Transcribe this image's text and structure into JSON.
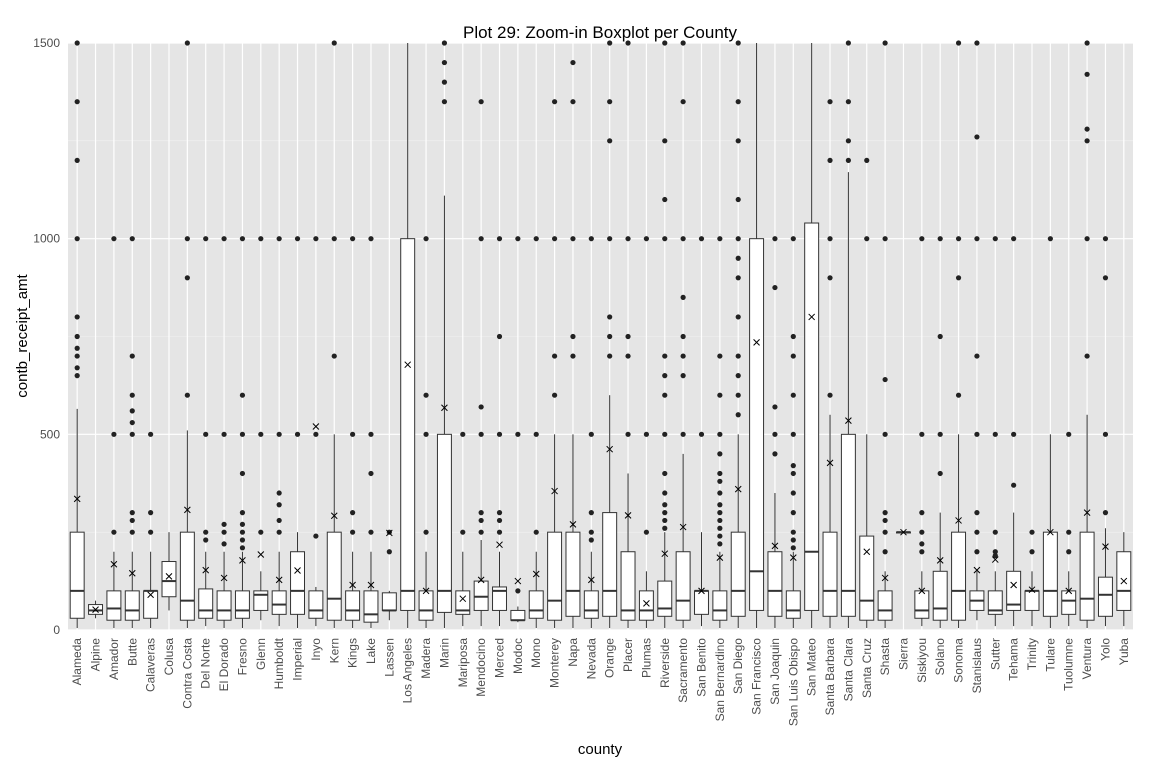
{
  "chart_data": {
    "type": "boxplot",
    "title": "Plot 29: Zoom-in Boxplot per County",
    "xlabel": "county",
    "ylabel": "contb_receipt_amt",
    "ylim": [
      0,
      1500
    ],
    "yticks": [
      0,
      500,
      1000,
      1500
    ],
    "grid": true,
    "mean_marker": "x",
    "colors": {
      "panel": "#e5e5e5",
      "grid": "#ffffff",
      "box_fill": "#ffffff",
      "box_stroke": "#333333",
      "point": "#222222"
    },
    "categories": [
      "Alameda",
      "Alpine",
      "Amador",
      "Butte",
      "Calaveras",
      "Colusa",
      "Contra Costa",
      "Del Norte",
      "El Dorado",
      "Fresno",
      "Glenn",
      "Humboldt",
      "Imperial",
      "Inyo",
      "Kern",
      "Kings",
      "Lake",
      "Lassen",
      "Los Angeles",
      "Madera",
      "Marin",
      "Mariposa",
      "Mendocino",
      "Merced",
      "Modoc",
      "Mono",
      "Monterey",
      "Napa",
      "Nevada",
      "Orange",
      "Placer",
      "Plumas",
      "Riverside",
      "Sacramento",
      "San Benito",
      "San Bernardino",
      "San Diego",
      "San Francisco",
      "San Joaquin",
      "San Luis Obispo",
      "San Mateo",
      "Santa Barbara",
      "Santa Clara",
      "Santa Cruz",
      "Shasta",
      "Sierra",
      "Siskiyou",
      "Solano",
      "Sonoma",
      "Stanislaus",
      "Sutter",
      "Tehama",
      "Trinity",
      "Tulare",
      "Tuolumne",
      "Ventura",
      "Yolo",
      "Yuba"
    ],
    "boxes": [
      {
        "q1": 30,
        "median": 100,
        "q3": 250,
        "wmin": 5,
        "wmax": 565,
        "mean": 335,
        "outliers": [
          650,
          670,
          700,
          720,
          750,
          800,
          1000,
          1200,
          1350,
          1500
        ]
      },
      {
        "q1": 40,
        "median": 50,
        "q3": 65,
        "wmin": 30,
        "wmax": 75,
        "mean": 52,
        "outliers": []
      },
      {
        "q1": 25,
        "median": 55,
        "q3": 100,
        "wmin": 5,
        "wmax": 200,
        "mean": 168,
        "outliers": [
          250,
          500,
          1000
        ]
      },
      {
        "q1": 25,
        "median": 50,
        "q3": 100,
        "wmin": 5,
        "wmax": 200,
        "mean": 145,
        "outliers": [
          250,
          280,
          300,
          500,
          530,
          560,
          600,
          700,
          1000
        ]
      },
      {
        "q1": 30,
        "median": 100,
        "q3": 100,
        "wmin": 5,
        "wmax": 200,
        "mean": 90,
        "outliers": [
          250,
          300,
          500
        ]
      },
      {
        "q1": 85,
        "median": 125,
        "q3": 175,
        "wmin": 50,
        "wmax": 250,
        "mean": 137,
        "outliers": []
      },
      {
        "q1": 25,
        "median": 75,
        "q3": 250,
        "wmin": 5,
        "wmax": 510,
        "mean": 307,
        "outliers": [
          600,
          900,
          1000,
          1500
        ]
      },
      {
        "q1": 30,
        "median": 50,
        "q3": 105,
        "wmin": 10,
        "wmax": 200,
        "mean": 153,
        "outliers": [
          230,
          250,
          500,
          1000
        ]
      },
      {
        "q1": 25,
        "median": 50,
        "q3": 100,
        "wmin": 5,
        "wmax": 200,
        "mean": 133,
        "outliers": [
          220,
          250,
          270,
          500,
          1000
        ]
      },
      {
        "q1": 30,
        "median": 50,
        "q3": 100,
        "wmin": 5,
        "wmax": 200,
        "mean": 178,
        "outliers": [
          210,
          230,
          250,
          270,
          300,
          400,
          500,
          600,
          1000
        ]
      },
      {
        "q1": 50,
        "median": 90,
        "q3": 100,
        "wmin": 25,
        "wmax": 150,
        "mean": 193,
        "outliers": [
          250,
          500,
          1000
        ]
      },
      {
        "q1": 40,
        "median": 65,
        "q3": 100,
        "wmin": 10,
        "wmax": 200,
        "mean": 128,
        "outliers": [
          250,
          280,
          320,
          350,
          500,
          1000
        ]
      },
      {
        "q1": 40,
        "median": 100,
        "q3": 200,
        "wmin": 5,
        "wmax": 250,
        "mean": 152,
        "outliers": [
          500,
          1000
        ]
      },
      {
        "q1": 30,
        "median": 50,
        "q3": 100,
        "wmin": 10,
        "wmax": 110,
        "mean": 520,
        "outliers": [
          240,
          500,
          1000
        ]
      },
      {
        "q1": 25,
        "median": 80,
        "q3": 250,
        "wmin": 5,
        "wmax": 500,
        "mean": 292,
        "outliers": [
          700,
          1000,
          1500
        ]
      },
      {
        "q1": 25,
        "median": 50,
        "q3": 100,
        "wmin": 5,
        "wmax": 200,
        "mean": 115,
        "outliers": [
          250,
          300,
          500,
          1000
        ]
      },
      {
        "q1": 20,
        "median": 40,
        "q3": 100,
        "wmin": 5,
        "wmax": 200,
        "mean": 115,
        "outliers": [
          250,
          400,
          500,
          1000
        ]
      },
      {
        "q1": 50,
        "median": 50,
        "q3": 95,
        "wmin": 25,
        "wmax": 100,
        "mean": 248,
        "outliers": [
          200,
          250
        ]
      },
      {
        "q1": 50,
        "median": 100,
        "q3": 1000,
        "wmin": 5,
        "wmax": 1500,
        "mean": 678,
        "outliers": []
      },
      {
        "q1": 25,
        "median": 50,
        "q3": 100,
        "wmin": 5,
        "wmax": 200,
        "mean": 100,
        "outliers": [
          250,
          500,
          600,
          1000
        ]
      },
      {
        "q1": 45,
        "median": 100,
        "q3": 500,
        "wmin": 5,
        "wmax": 1110,
        "mean": 568,
        "outliers": [
          1350,
          1400,
          1450,
          1500
        ]
      },
      {
        "q1": 40,
        "median": 50,
        "q3": 100,
        "wmin": 10,
        "wmax": 200,
        "mean": 80,
        "outliers": [
          250,
          500
        ]
      },
      {
        "q1": 50,
        "median": 85,
        "q3": 125,
        "wmin": 10,
        "wmax": 230,
        "mean": 128,
        "outliers": [
          250,
          280,
          300,
          500,
          570,
          1000,
          1350
        ]
      },
      {
        "q1": 50,
        "median": 100,
        "q3": 110,
        "wmin": 10,
        "wmax": 200,
        "mean": 218,
        "outliers": [
          250,
          280,
          300,
          500,
          750,
          1000
        ]
      },
      {
        "q1": 25,
        "median": 25,
        "q3": 50,
        "wmin": 20,
        "wmax": 60,
        "mean": 125,
        "outliers": [
          100,
          500,
          1000
        ]
      },
      {
        "q1": 30,
        "median": 50,
        "q3": 100,
        "wmin": 5,
        "wmax": 200,
        "mean": 143,
        "outliers": [
          250,
          500,
          1000
        ]
      },
      {
        "q1": 25,
        "median": 75,
        "q3": 250,
        "wmin": 5,
        "wmax": 500,
        "mean": 355,
        "outliers": [
          600,
          700,
          1000,
          1350
        ]
      },
      {
        "q1": 35,
        "median": 100,
        "q3": 250,
        "wmin": 5,
        "wmax": 500,
        "mean": 270,
        "outliers": [
          700,
          750,
          1000,
          1350,
          1450
        ]
      },
      {
        "q1": 30,
        "median": 50,
        "q3": 100,
        "wmin": 5,
        "wmax": 200,
        "mean": 128,
        "outliers": [
          230,
          250,
          300,
          500,
          1000
        ]
      },
      {
        "q1": 35,
        "median": 100,
        "q3": 300,
        "wmin": 5,
        "wmax": 600,
        "mean": 462,
        "outliers": [
          700,
          750,
          800,
          1000,
          1250,
          1350,
          1500
        ]
      },
      {
        "q1": 25,
        "median": 50,
        "q3": 200,
        "wmin": 5,
        "wmax": 400,
        "mean": 293,
        "outliers": [
          500,
          700,
          750,
          1000,
          1500
        ]
      },
      {
        "q1": 25,
        "median": 50,
        "q3": 100,
        "wmin": 5,
        "wmax": 150,
        "mean": 68,
        "outliers": [
          250,
          500,
          1000
        ]
      },
      {
        "q1": 35,
        "median": 55,
        "q3": 125,
        "wmin": 5,
        "wmax": 250,
        "mean": 195,
        "outliers": [
          260,
          280,
          300,
          320,
          350,
          400,
          500,
          600,
          650,
          700,
          1000,
          1100,
          1250,
          1500
        ]
      },
      {
        "q1": 25,
        "median": 75,
        "q3": 200,
        "wmin": 5,
        "wmax": 450,
        "mean": 263,
        "outliers": [
          500,
          650,
          700,
          750,
          850,
          1000,
          1350,
          1500
        ]
      },
      {
        "q1": 40,
        "median": 100,
        "q3": 100,
        "wmin": 10,
        "wmax": 250,
        "mean": 100,
        "outliers": [
          500,
          1000
        ]
      },
      {
        "q1": 25,
        "median": 50,
        "q3": 100,
        "wmin": 5,
        "wmax": 200,
        "mean": 185,
        "outliers": [
          220,
          240,
          260,
          280,
          300,
          320,
          350,
          380,
          400,
          450,
          500,
          600,
          700,
          1000
        ]
      },
      {
        "q1": 35,
        "median": 100,
        "q3": 250,
        "wmin": 5,
        "wmax": 500,
        "mean": 360,
        "outliers": [
          550,
          600,
          650,
          700,
          800,
          900,
          950,
          1000,
          1100,
          1250,
          1350,
          1500
        ]
      },
      {
        "q1": 50,
        "median": 150,
        "q3": 1000,
        "wmin": 5,
        "wmax": 1500,
        "mean": 735,
        "outliers": []
      },
      {
        "q1": 35,
        "median": 100,
        "q3": 200,
        "wmin": 5,
        "wmax": 350,
        "mean": 215,
        "outliers": [
          450,
          500,
          570,
          875,
          1000
        ]
      },
      {
        "q1": 30,
        "median": 50,
        "q3": 100,
        "wmin": 5,
        "wmax": 200,
        "mean": 185,
        "outliers": [
          210,
          230,
          250,
          300,
          350,
          400,
          420,
          500,
          600,
          700,
          750,
          1000
        ]
      },
      {
        "q1": 50,
        "median": 200,
        "q3": 1040,
        "wmin": 5,
        "wmax": 1500,
        "mean": 800,
        "outliers": []
      },
      {
        "q1": 35,
        "median": 100,
        "q3": 250,
        "wmin": 5,
        "wmax": 550,
        "mean": 427,
        "outliers": [
          600,
          900,
          1000,
          1200,
          1350
        ]
      },
      {
        "q1": 35,
        "median": 100,
        "q3": 500,
        "wmin": 5,
        "wmax": 1170,
        "mean": 535,
        "outliers": [
          1200,
          1250,
          1350,
          1500
        ]
      },
      {
        "q1": 25,
        "median": 75,
        "q3": 240,
        "wmin": 5,
        "wmax": 500,
        "mean": 200,
        "outliers": [
          1000,
          1200
        ]
      },
      {
        "q1": 25,
        "median": 50,
        "q3": 100,
        "wmin": 5,
        "wmax": 150,
        "mean": 133,
        "outliers": [
          200,
          250,
          280,
          300,
          500,
          640,
          1000,
          1500
        ]
      },
      {
        "q1": 250,
        "median": 250,
        "q3": 250,
        "wmin": 250,
        "wmax": 250,
        "mean": 250,
        "outliers": []
      },
      {
        "q1": 30,
        "median": 50,
        "q3": 100,
        "wmin": 10,
        "wmax": 150,
        "mean": 100,
        "outliers": [
          200,
          220,
          250,
          300,
          500,
          1000
        ]
      },
      {
        "q1": 25,
        "median": 55,
        "q3": 150,
        "wmin": 5,
        "wmax": 300,
        "mean": 178,
        "outliers": [
          400,
          500,
          750,
          1000
        ]
      },
      {
        "q1": 25,
        "median": 100,
        "q3": 250,
        "wmin": 5,
        "wmax": 500,
        "mean": 280,
        "outliers": [
          600,
          900,
          1000,
          1500
        ]
      },
      {
        "q1": 50,
        "median": 75,
        "q3": 100,
        "wmin": 25,
        "wmax": 150,
        "mean": 153,
        "outliers": [
          200,
          250,
          300,
          500,
          700,
          1000,
          1260,
          1500
        ]
      },
      {
        "q1": 40,
        "median": 50,
        "q3": 100,
        "wmin": 10,
        "wmax": 150,
        "mean": 180,
        "outliers": [
          190,
          200,
          250,
          500,
          1000
        ]
      },
      {
        "q1": 50,
        "median": 65,
        "q3": 150,
        "wmin": 10,
        "wmax": 300,
        "mean": 115,
        "outliers": [
          370,
          500,
          1000
        ]
      },
      {
        "q1": 50,
        "median": 100,
        "q3": 100,
        "wmin": 10,
        "wmax": 150,
        "mean": 103,
        "outliers": [
          200,
          250
        ]
      },
      {
        "q1": 35,
        "median": 100,
        "q3": 250,
        "wmin": 5,
        "wmax": 500,
        "mean": 250,
        "outliers": [
          1000
        ]
      },
      {
        "q1": 40,
        "median": 75,
        "q3": 100,
        "wmin": 10,
        "wmax": 150,
        "mean": 100,
        "outliers": [
          200,
          250,
          500
        ]
      },
      {
        "q1": 25,
        "median": 80,
        "q3": 250,
        "wmin": 5,
        "wmax": 550,
        "mean": 300,
        "outliers": [
          700,
          1000,
          1250,
          1280,
          1420,
          1500
        ]
      },
      {
        "q1": 35,
        "median": 90,
        "q3": 135,
        "wmin": 10,
        "wmax": 260,
        "mean": 213,
        "outliers": [
          300,
          500,
          900,
          1000
        ]
      },
      {
        "q1": 50,
        "median": 100,
        "q3": 200,
        "wmin": 10,
        "wmax": 250,
        "mean": 125,
        "outliers": []
      }
    ]
  }
}
